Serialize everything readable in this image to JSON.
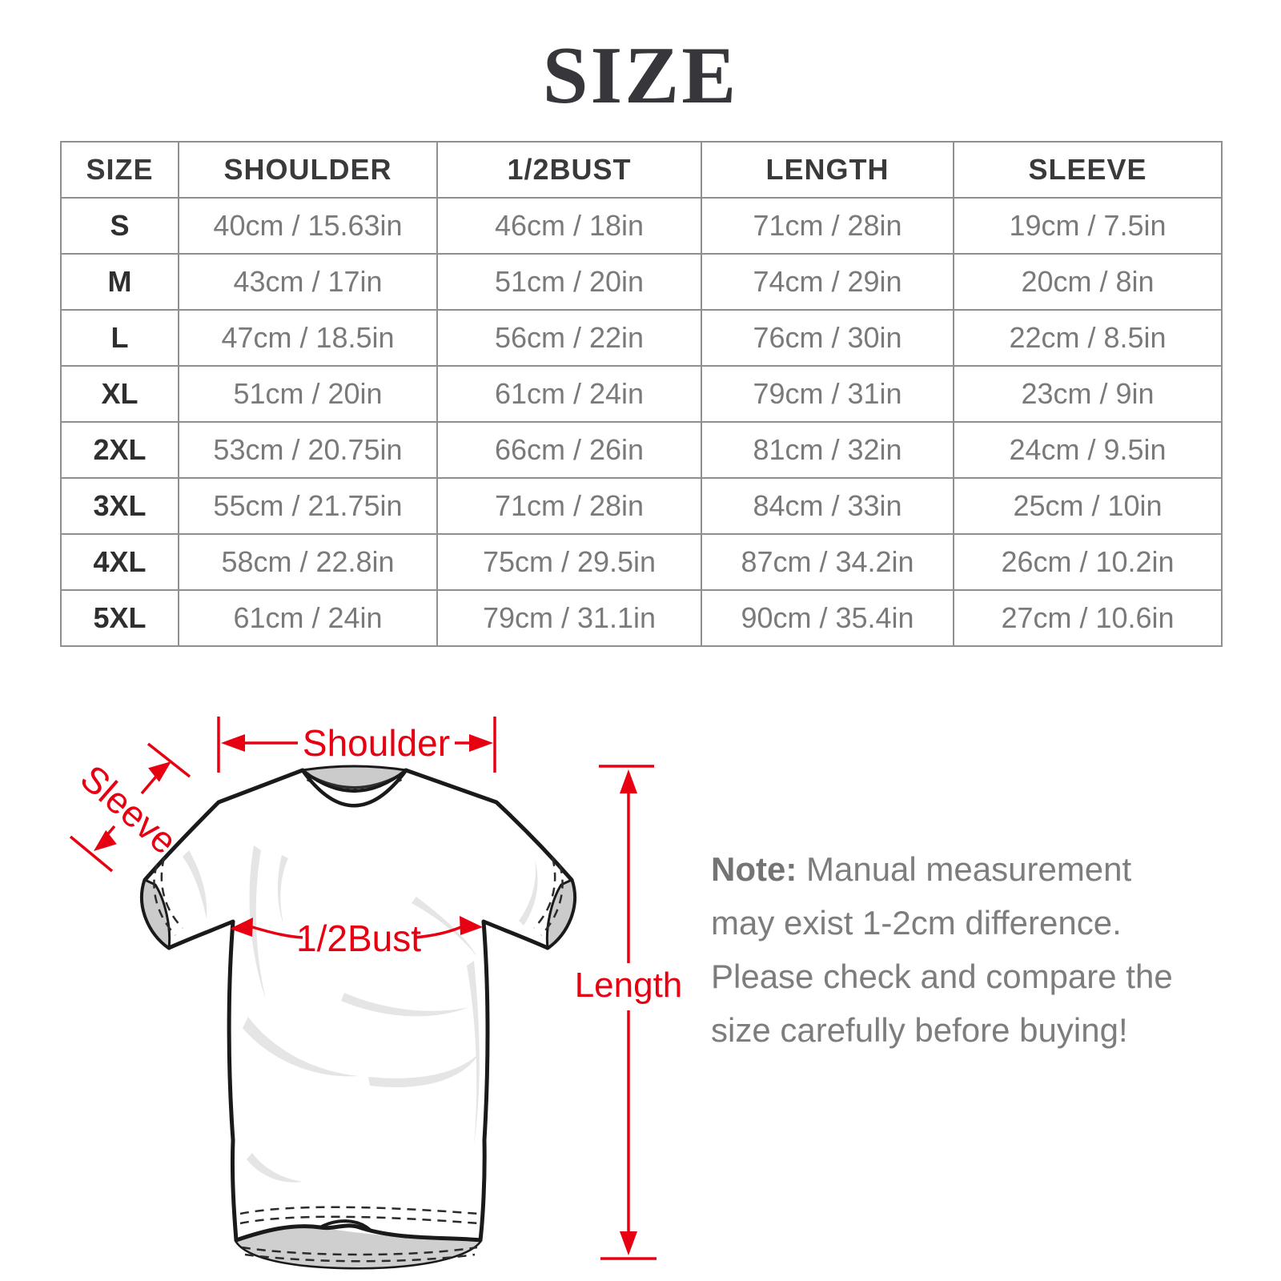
{
  "title": "SIZE",
  "colors": {
    "accent": "#e60012",
    "table_border": "#8f8f8f",
    "value_text": "#7a7a7a",
    "note_text": "#7d7d7d"
  },
  "table": {
    "headers": [
      "SIZE",
      "SHOULDER",
      "1/2BUST",
      "LENGTH",
      "SLEEVE"
    ],
    "rows": [
      [
        "S",
        "40cm / 15.63in",
        "46cm / 18in",
        "71cm / 28in",
        "19cm / 7.5in"
      ],
      [
        "M",
        "43cm / 17in",
        "51cm / 20in",
        "74cm / 29in",
        "20cm / 8in"
      ],
      [
        "L",
        "47cm / 18.5in",
        "56cm / 22in",
        "76cm / 30in",
        "22cm / 8.5in"
      ],
      [
        "XL",
        "51cm / 20in",
        "61cm / 24in",
        "79cm / 31in",
        "23cm / 9in"
      ],
      [
        "2XL",
        "53cm / 20.75in",
        "66cm / 26in",
        "81cm / 32in",
        "24cm / 9.5in"
      ],
      [
        "3XL",
        "55cm / 21.75in",
        "71cm / 28in",
        "84cm / 33in",
        "25cm / 10in"
      ],
      [
        "4XL",
        "58cm / 22.8in",
        "75cm / 29.5in",
        "87cm / 34.2in",
        "26cm / 10.2in"
      ],
      [
        "5XL",
        "61cm / 24in",
        "79cm / 31.1in",
        "90cm / 35.4in",
        "27cm / 10.6in"
      ]
    ]
  },
  "diagram": {
    "shoulder_label": "Shoulder",
    "sleeve_label": "Sleeve",
    "bust_label": "1/2Bust",
    "length_label": "Length"
  },
  "note": {
    "label": "Note:",
    "text": " Manual measurement may exist 1-2cm difference. Please check and compare the size carefully before buying!"
  }
}
